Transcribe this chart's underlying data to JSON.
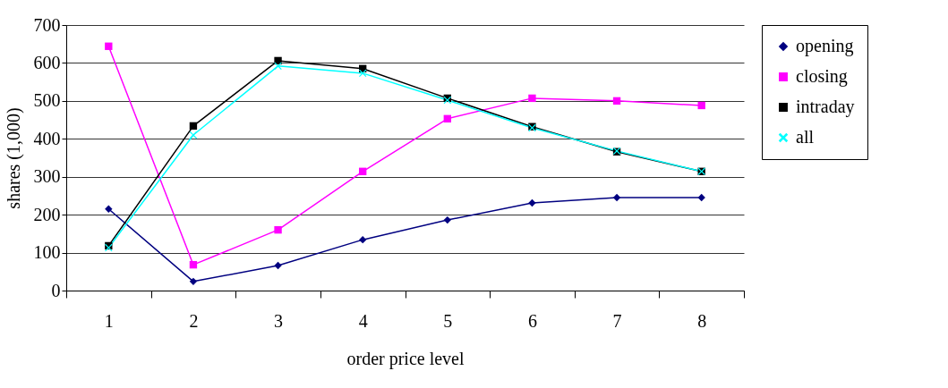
{
  "chart_data": {
    "type": "line",
    "xlabel": "order price level",
    "ylabel": "shares (1,000)",
    "categories": [
      "1",
      "2",
      "3",
      "4",
      "5",
      "6",
      "7",
      "8"
    ],
    "series": [
      {
        "name": "opening",
        "color": "#000080",
        "marker": "diamond",
        "values": [
          215,
          24,
          66,
          134,
          186,
          231,
          245,
          245
        ]
      },
      {
        "name": "closing",
        "color": "#ff00ff",
        "marker": "square",
        "values": [
          644,
          68,
          160,
          314,
          453,
          507,
          500,
          488
        ]
      },
      {
        "name": "intraday",
        "color": "#000000",
        "marker": "square",
        "values": [
          118,
          434,
          606,
          585,
          507,
          432,
          366,
          314
        ]
      },
      {
        "name": "all",
        "color": "#00ffff",
        "marker": "cross",
        "values": [
          113,
          410,
          592,
          573,
          502,
          429,
          368,
          314
        ]
      }
    ],
    "ylim": [
      0,
      700
    ],
    "yticks": [
      0,
      100,
      200,
      300,
      400,
      500,
      600,
      700
    ],
    "grid": "y",
    "legend": "right",
    "line_style": "solid"
  }
}
